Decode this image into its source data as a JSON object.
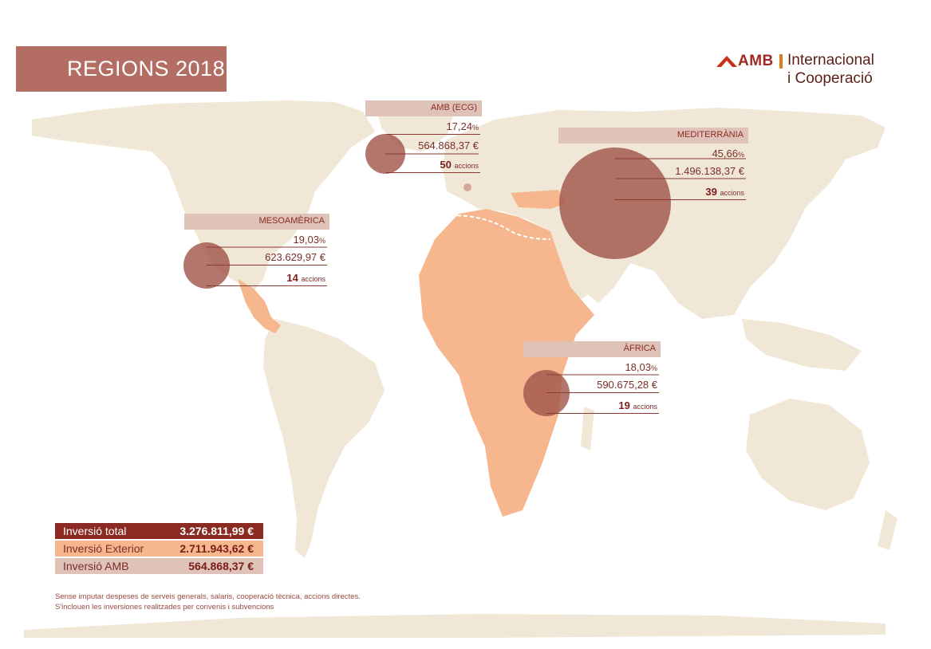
{
  "title": "REGIONS 2018",
  "logo": {
    "brand": "AMB",
    "line1": "Internacional",
    "line2": "i Cooperació",
    "icon": "amb-logo-icon"
  },
  "colors": {
    "title_bg": "#b36d63",
    "land": "#f1e7d6",
    "africa_highlight": "#f6b78e",
    "bubble": "#a05449",
    "total_bg": "#8b2a22",
    "exterior_bg": "#f6b78e",
    "amb_bg": "#dfc3b8"
  },
  "regions": [
    {
      "id": "amb-ecg",
      "name": "AMB (ECG)",
      "percent": "17,24",
      "percent_unit": "%",
      "amount": "564.868,37 €",
      "actions": "50",
      "actions_label": "accions"
    },
    {
      "id": "mediterrania",
      "name": "MEDITERRÀNIA",
      "percent": "45,66",
      "percent_unit": "%",
      "amount": "1.496.138,37 €",
      "actions": "39",
      "actions_label": "accions"
    },
    {
      "id": "mesoamerica",
      "name": "MESOAMÈRICA",
      "percent": "19,03",
      "percent_unit": "%",
      "amount": "623.629,97 €",
      "actions": "14",
      "actions_label": "accions"
    },
    {
      "id": "africa",
      "name": "ÀFRICA",
      "percent": "18,03",
      "percent_unit": "%",
      "amount": "590.675,28 €",
      "actions": "19",
      "actions_label": "accions"
    }
  ],
  "investment": {
    "total_label": "Inversió total",
    "total_value": "3.276.811,99 €",
    "exterior_label": "Inversió Exterior",
    "exterior_value": "2.711.943,62 €",
    "amb_label": "Inversió AMB",
    "amb_value": "564.868,37 €"
  },
  "notes": [
    "Sense imputar despeses de serveis generals, salaris, cooperació tècnica, accions directes.",
    "S'inclouen les inversiones realitzades per convenis i subvencions"
  ]
}
